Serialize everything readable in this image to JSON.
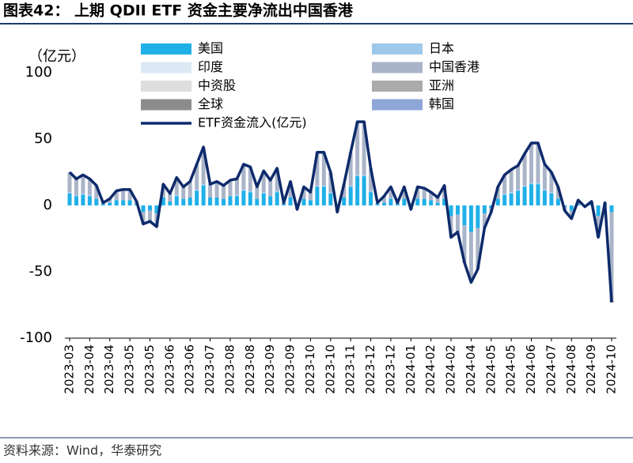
{
  "title": "图表42： 上期 QDII ETF 资金主要净流出中国香港",
  "source": "资料来源：Wind，华泰研究",
  "chart_data": {
    "type": "bar",
    "y_unit": "（亿元）",
    "categories": [
      "2023-03",
      null,
      null,
      "2023-04",
      null,
      null,
      "2023-04",
      null,
      null,
      "2023-05",
      null,
      null,
      "2023-05",
      null,
      null,
      "2023-06",
      null,
      null,
      "2023-06",
      null,
      null,
      "2023-07",
      null,
      null,
      "2023-08",
      null,
      null,
      "2023-08",
      null,
      null,
      "2023-09",
      null,
      null,
      "2023-09",
      null,
      null,
      "2023-10",
      null,
      null,
      "2023-10",
      null,
      null,
      "2023-11",
      null,
      null,
      "2023-12",
      null,
      null,
      "2023-12",
      null,
      null,
      "2024-01",
      null,
      null,
      "2024-02",
      null,
      null,
      "2024-02",
      null,
      null,
      "2024-04",
      null,
      null,
      "2024-05",
      null,
      null,
      "2024-05",
      null,
      null,
      "2024-06",
      null,
      null,
      "2024-07",
      null,
      null,
      "2024-08",
      null,
      null,
      "2024-09",
      null,
      null,
      "2024-10"
    ],
    "series": [
      {
        "name": "美国",
        "color": "#1fb0e8",
        "values": [
          9,
          7,
          8,
          7,
          5,
          1,
          2,
          4,
          4,
          4,
          1,
          -5,
          -4,
          -6,
          6,
          3,
          7,
          5,
          6,
          11,
          15,
          6,
          6,
          5,
          7,
          7,
          11,
          10,
          5,
          9,
          7,
          10,
          1,
          6,
          -1,
          5,
          4,
          14,
          14,
          9,
          -2,
          6,
          14,
          22,
          22,
          10,
          1,
          2,
          5,
          1,
          5,
          -1,
          5,
          5,
          4,
          2,
          5,
          -8,
          -7,
          -15,
          -20,
          -17,
          -6,
          -2,
          5,
          8,
          9,
          11,
          14,
          16,
          16,
          11,
          9,
          5,
          -1,
          -4,
          1,
          0,
          1,
          -8,
          1,
          -5
        ]
      },
      {
        "name": "日本",
        "color": "#9ec8ea",
        "values": [
          1,
          1,
          1,
          1,
          0,
          0,
          0,
          0,
          0,
          0,
          0,
          0,
          0,
          0,
          0,
          0,
          1,
          0,
          0,
          1,
          1,
          0,
          0,
          0,
          0,
          1,
          1,
          1,
          0,
          1,
          0,
          1,
          0,
          0,
          0,
          0,
          0,
          1,
          1,
          1,
          0,
          0,
          1,
          1,
          1,
          1,
          0,
          0,
          0,
          0,
          0,
          0,
          0,
          0,
          0,
          0,
          0,
          0,
          0,
          0,
          0,
          0,
          0,
          0,
          0,
          1,
          1,
          1,
          1,
          1,
          1,
          1,
          1,
          0,
          0,
          0,
          0,
          0,
          0,
          0,
          0,
          0
        ]
      },
      {
        "name": "印度",
        "color": "#dce9f5",
        "values": [
          0,
          0,
          0,
          0,
          0,
          0,
          0,
          0,
          0,
          0,
          0,
          0,
          0,
          0,
          0,
          0,
          0,
          0,
          0,
          0,
          0,
          0,
          0,
          0,
          0,
          0,
          0,
          0,
          0,
          0,
          0,
          0,
          0,
          0,
          0,
          0,
          0,
          0,
          0,
          0,
          0,
          0,
          0,
          0,
          0,
          0,
          0,
          0,
          0,
          0,
          0,
          0,
          0,
          0,
          0,
          0,
          0,
          0,
          0,
          0,
          0,
          0,
          0,
          0,
          0,
          0,
          0,
          0,
          0,
          0,
          0,
          0,
          0,
          0,
          0,
          0,
          0,
          0,
          0,
          0,
          0,
          0
        ]
      },
      {
        "name": "中国香港",
        "color": "#aab4c8",
        "values": [
          15,
          12,
          14,
          12,
          10,
          1,
          3,
          7,
          8,
          8,
          2,
          -8,
          -8,
          -9,
          10,
          6,
          13,
          9,
          12,
          19,
          27,
          10,
          12,
          10,
          12,
          12,
          19,
          18,
          9,
          16,
          12,
          17,
          1,
          12,
          -2,
          9,
          6,
          25,
          25,
          15,
          -3,
          10,
          25,
          39,
          38,
          17,
          1,
          5,
          9,
          1,
          9,
          -2,
          9,
          8,
          6,
          4,
          10,
          -16,
          -13,
          -27,
          -37,
          -31,
          -11,
          -3,
          9,
          14,
          17,
          18,
          24,
          29,
          29,
          19,
          15,
          9,
          -3,
          -6,
          3,
          -1,
          2,
          -16,
          1,
          -66
        ]
      },
      {
        "name": "中资股",
        "color": "#dedede",
        "values": [
          0,
          0,
          0,
          0,
          0,
          0,
          0,
          0,
          0,
          0,
          0,
          0,
          0,
          0,
          0,
          0,
          0,
          0,
          0,
          0,
          1,
          0,
          0,
          0,
          0,
          0,
          0,
          0,
          0,
          0,
          0,
          0,
          0,
          0,
          0,
          0,
          0,
          0,
          0,
          0,
          0,
          0,
          0,
          1,
          1,
          0,
          0,
          0,
          0,
          0,
          0,
          0,
          0,
          0,
          0,
          0,
          0,
          0,
          0,
          0,
          -1,
          0,
          0,
          0,
          0,
          0,
          0,
          0,
          0,
          1,
          1,
          0,
          0,
          0,
          0,
          0,
          0,
          0,
          0,
          0,
          0,
          0
        ]
      },
      {
        "name": "亚洲",
        "color": "#ababab",
        "values": [
          0,
          0,
          0,
          0,
          0,
          0,
          0,
          0,
          0,
          0,
          0,
          0,
          0,
          0,
          0,
          0,
          0,
          0,
          0,
          0,
          0,
          0,
          0,
          0,
          0,
          0,
          0,
          0,
          0,
          0,
          0,
          0,
          0,
          0,
          0,
          0,
          0,
          0,
          0,
          0,
          0,
          0,
          0,
          0,
          1,
          0,
          0,
          0,
          0,
          0,
          0,
          0,
          0,
          0,
          0,
          0,
          0,
          0,
          0,
          0,
          0,
          0,
          0,
          0,
          0,
          0,
          0,
          0,
          0,
          0,
          0,
          0,
          0,
          0,
          0,
          0,
          0,
          0,
          0,
          0,
          0,
          -1
        ]
      },
      {
        "name": "全球",
        "color": "#8c8c8c",
        "values": [
          0,
          0,
          0,
          0,
          0,
          0,
          0,
          0,
          0,
          0,
          0,
          -1,
          0,
          -1,
          0,
          0,
          0,
          0,
          0,
          0,
          0,
          0,
          0,
          0,
          0,
          0,
          0,
          0,
          0,
          0,
          0,
          0,
          0,
          0,
          0,
          0,
          0,
          0,
          0,
          0,
          0,
          0,
          0,
          0,
          0,
          0,
          0,
          0,
          0,
          0,
          0,
          0,
          0,
          0,
          0,
          0,
          0,
          0,
          0,
          -1,
          0,
          0,
          0,
          0,
          0,
          0,
          0,
          0,
          0,
          0,
          0,
          0,
          0,
          0,
          0,
          0,
          0,
          0,
          0,
          0,
          0,
          -1
        ]
      },
      {
        "name": "韩国",
        "color": "#8fa6d8",
        "values": [
          0,
          0,
          0,
          0,
          0,
          0,
          0,
          0,
          0,
          0,
          0,
          0,
          0,
          0,
          0,
          0,
          0,
          0,
          0,
          0,
          0,
          0,
          0,
          0,
          0,
          0,
          0,
          0,
          0,
          0,
          0,
          0,
          0,
          0,
          0,
          0,
          0,
          0,
          0,
          0,
          0,
          0,
          0,
          0,
          0,
          0,
          0,
          0,
          0,
          0,
          0,
          0,
          0,
          0,
          0,
          0,
          0,
          0,
          0,
          0,
          0,
          0,
          0,
          0,
          0,
          0,
          0,
          0,
          0,
          0,
          0,
          0,
          0,
          0,
          0,
          0,
          0,
          0,
          0,
          0,
          0,
          0
        ]
      }
    ],
    "line": {
      "name": "ETF资金流入(亿元)",
      "color": "#0d2a6b",
      "values": [
        25,
        20,
        23,
        20,
        15,
        2,
        5,
        11,
        12,
        12,
        3,
        -14,
        -12,
        -16,
        16,
        9,
        21,
        14,
        18,
        31,
        44,
        16,
        18,
        15,
        19,
        20,
        31,
        29,
        14,
        26,
        19,
        28,
        2,
        18,
        -3,
        14,
        10,
        40,
        40,
        25,
        -5,
        16,
        40,
        63,
        63,
        28,
        2,
        7,
        14,
        2,
        14,
        -3,
        14,
        13,
        10,
        6,
        15,
        -24,
        -20,
        -43,
        -58,
        -48,
        -17,
        -5,
        14,
        23,
        27,
        30,
        39,
        47,
        47,
        31,
        25,
        14,
        -4,
        -10,
        4,
        -1,
        3,
        -24,
        2,
        -73
      ]
    },
    "ylim": [
      -100,
      100
    ],
    "yticks": [
      -100,
      -50,
      0,
      50,
      100
    ],
    "stacked": true
  }
}
